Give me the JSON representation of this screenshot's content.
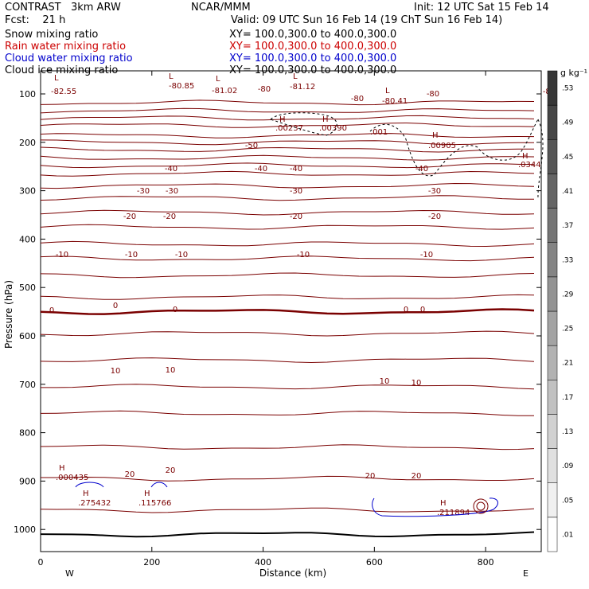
{
  "header": {
    "model": "CONTRAST   3km ARW",
    "center": "NCAR/MMM",
    "init": "Init: 12 UTC Sat 15 Feb 14",
    "fcst": "Fcst:    21 h",
    "valid": "Valid: 09 UTC Sun 16 Feb 14 (19 ChT Sun 16 Feb 14)"
  },
  "fields": [
    {
      "name": "Snow mixing ratio",
      "xy": "XY= 100.0,300.0 to 400.0,300.0",
      "color": "#000000"
    },
    {
      "name": "Rain water mixing ratio",
      "xy": "XY= 100.0,300.0 to 400.0,300.0",
      "color": "#cc0000"
    },
    {
      "name": "Cloud water mixing ratio",
      "xy": "XY= 100.0,300.0 to 400.0,300.0",
      "color": "#0000cc"
    },
    {
      "name": "Cloud ice mixing ratio",
      "xy": "XY= 100.0,300.0 to 400.0,300.0",
      "color": "#000000"
    }
  ],
  "chart_data": {
    "type": "contour",
    "xlabel": "Distance (km)",
    "ylabel": "Pressure (hPa)",
    "xlim": [
      0,
      900
    ],
    "ylim": [
      1000,
      100
    ],
    "x_ticks": [
      0,
      200,
      400,
      600,
      800
    ],
    "y_ticks": [
      100,
      200,
      300,
      400,
      500,
      600,
      700,
      800,
      900,
      1000
    ],
    "x_end_labels": {
      "left": "W",
      "right": "E"
    },
    "colorbar": {
      "units": "g kg⁻¹",
      "levels": [
        ".01",
        ".05",
        ".09",
        ".13",
        ".17",
        ".21",
        ".25",
        ".29",
        ".33",
        ".37",
        ".41",
        ".45",
        ".49",
        ".53"
      ]
    },
    "temperature_contours": {
      "color": "#7a0000",
      "labels": [
        "-82.55",
        "-80.85",
        "-81.02",
        "-81.12",
        "-80.41",
        "-80",
        "-50",
        "-40",
        "-30",
        "-20",
        "-10",
        "0",
        "10",
        "20"
      ]
    },
    "extrema_labels": [
      {
        "marker": "L",
        "value": "-82.55"
      },
      {
        "marker": "L",
        "value": "-80.85"
      },
      {
        "marker": "L",
        "value": "-81.02"
      },
      {
        "marker": "L",
        "value": "-81.12"
      },
      {
        "marker": "L",
        "value": "-80.41"
      },
      {
        "marker": "H",
        "value": ".00237"
      },
      {
        "marker": "H",
        "value": ".00390"
      },
      {
        "marker": "H",
        "value": ".00905"
      },
      {
        "marker": "H",
        "value": ".0344"
      },
      {
        "marker": "H",
        "value": ".000435"
      },
      {
        "marker": "H",
        "value": ".275432"
      },
      {
        "marker": "H",
        "value": ".115766"
      },
      {
        "marker": "H",
        "value": ".211894"
      }
    ],
    "ice_contour_label": ".001"
  }
}
